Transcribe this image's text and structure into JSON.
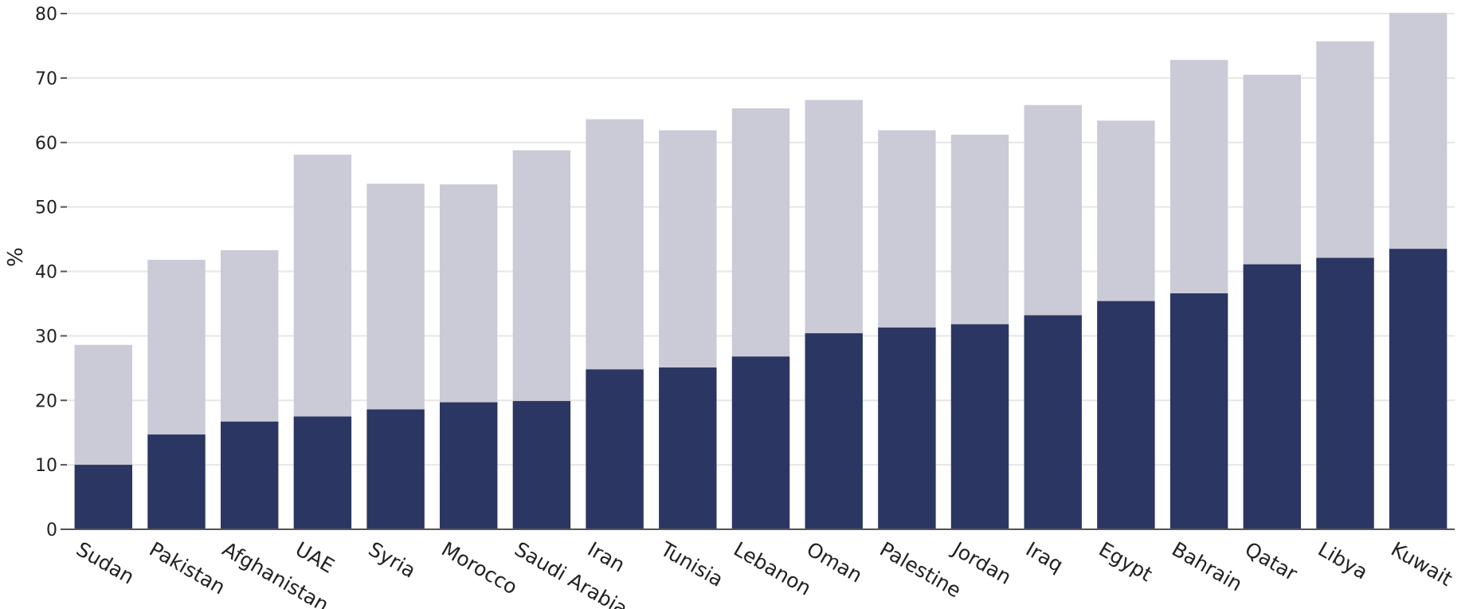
{
  "chart_data": {
    "type": "bar",
    "stacked": false,
    "overlapping": true,
    "categories": [
      "Sudan",
      "Pakistan",
      "Afghanistan",
      "UAE",
      "Syria",
      "Morocco",
      "Saudi Arabia",
      "Iran",
      "Tunisia",
      "Lebanon",
      "Oman",
      "Palestine",
      "Jordan",
      "Iraq",
      "Egypt",
      "Bahrain",
      "Qatar",
      "Libya",
      "Kuwait"
    ],
    "series": [
      {
        "values": [
          28.6,
          41.8,
          43.3,
          58.1,
          53.6,
          53.5,
          58.8,
          63.6,
          61.9,
          65.3,
          66.6,
          61.9,
          61.2,
          65.8,
          63.4,
          72.8,
          70.5,
          75.7,
          80.1
        ],
        "color": "#cacbd7"
      },
      {
        "values": [
          10.0,
          14.7,
          16.7,
          17.5,
          18.6,
          19.7,
          19.9,
          24.8,
          25.1,
          26.8,
          30.4,
          31.3,
          31.8,
          33.2,
          35.4,
          36.6,
          41.1,
          42.1,
          43.5
        ],
        "color": "#2b3663"
      }
    ],
    "ylabel": "%",
    "xlabel": "",
    "title": "",
    "ylim": [
      0,
      80
    ],
    "yticks": [
      0,
      10,
      20,
      30,
      40,
      50,
      60,
      70,
      80
    ],
    "grid": true,
    "legend": "none"
  }
}
